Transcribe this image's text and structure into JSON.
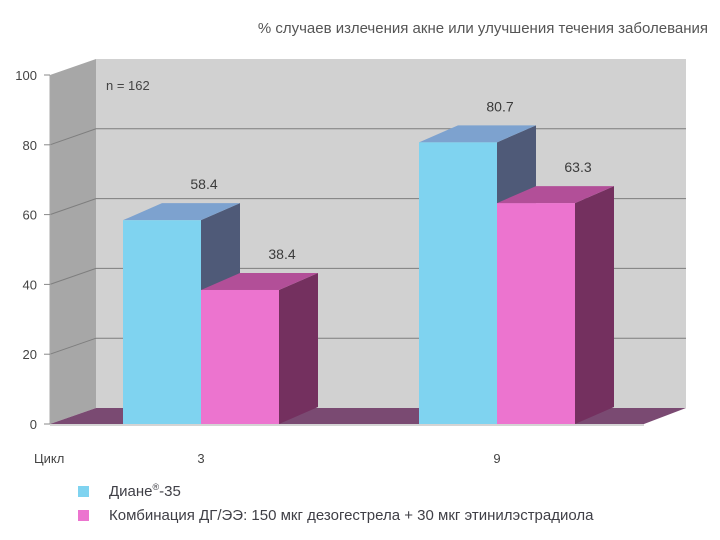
{
  "chart_data": {
    "type": "bar",
    "style": "3d",
    "title": "% случаев излечения акне или улучшения течения заболевания",
    "annotation": "n = 162",
    "xlabel": "Цикл",
    "ylabel": "",
    "categories": [
      "3",
      "9"
    ],
    "ylim": [
      0,
      100
    ],
    "yticks": [
      "0",
      "20",
      "40",
      "60",
      "80",
      "100"
    ],
    "grid": true,
    "legend_position": "bottom",
    "series": [
      {
        "name": "Диане®-35",
        "name_main": "Диане",
        "name_sup": "®",
        "name_suffix": "-35",
        "color": "#7fd3f0",
        "side_color": "#4f5a78",
        "top_color": "#7da2cf",
        "values": [
          58.4,
          80.7
        ],
        "value_labels": [
          "58.4",
          "80.7"
        ]
      },
      {
        "name": "Комбинация ДГ/ЭЭ: 150 мкг дезогестрела + 30 мкг этинилэстрадиола",
        "name_main": "Комбинация ДГ/ЭЭ: 150 мкг дезогестрела + 30 мкг этинилэстрадиола",
        "name_sup": "",
        "name_suffix": "",
        "color": "#ec74cf",
        "side_color": "#74305f",
        "top_color": "#b24f98",
        "values": [
          38.4,
          63.3
        ],
        "value_labels": [
          "38.4",
          "63.3"
        ]
      }
    ]
  }
}
